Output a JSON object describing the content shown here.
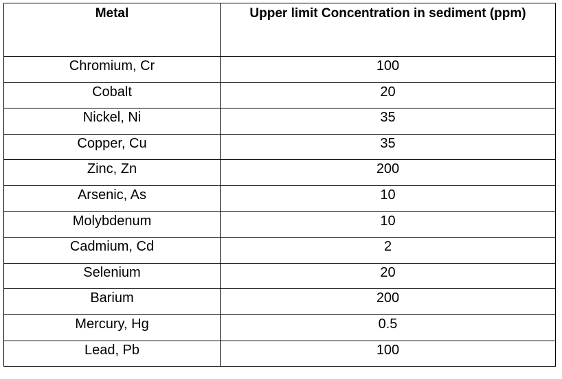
{
  "table": {
    "header": [
      "Metal",
      "Upper limit Concentration in sediment (ppm)"
    ],
    "rows": [
      [
        "Chromium, Cr",
        "100"
      ],
      [
        "Cobalt",
        "20"
      ],
      [
        "Nickel, Ni",
        "35"
      ],
      [
        "Copper, Cu",
        "35"
      ],
      [
        "Zinc, Zn",
        "200"
      ],
      [
        "Arsenic, As",
        "10"
      ],
      [
        "Molybdenum",
        "10"
      ],
      [
        "Cadmium, Cd",
        "2"
      ],
      [
        "Selenium",
        "20"
      ],
      [
        "Barium",
        "200"
      ],
      [
        "Mercury, Hg",
        "0.5"
      ],
      [
        "Lead, Pb",
        "100"
      ]
    ]
  }
}
